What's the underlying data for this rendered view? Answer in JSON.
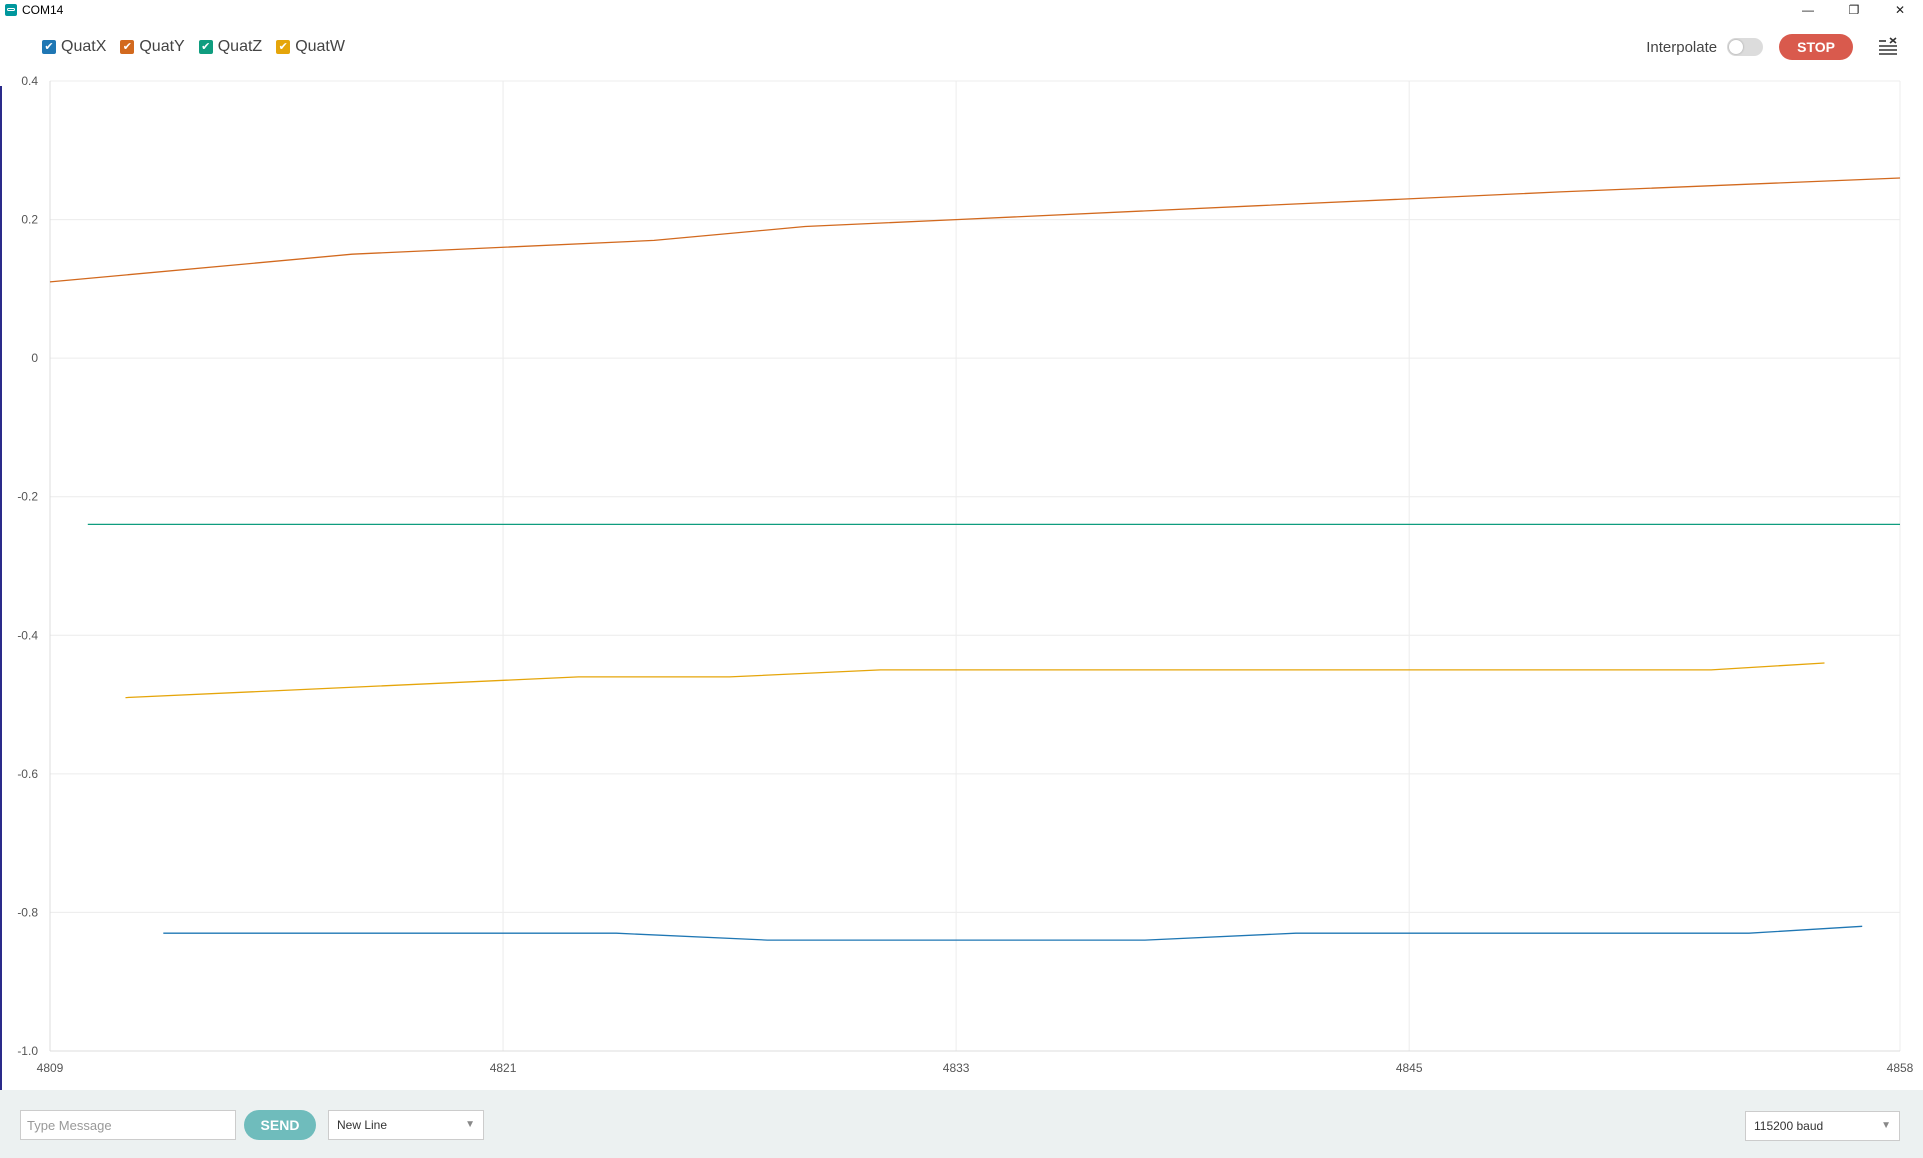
{
  "window": {
    "title": "COM14",
    "minimize_glyph": "—",
    "maximize_glyph": "❐",
    "close_glyph": "✕"
  },
  "legend": [
    {
      "label": "QuatX",
      "color": "#1f77b4",
      "checked": true
    },
    {
      "label": "QuatY",
      "color": "#d2691e",
      "checked": true
    },
    {
      "label": "QuatZ",
      "color": "#0f9d7f",
      "checked": true
    },
    {
      "label": "QuatW",
      "color": "#e5a50a",
      "checked": true
    }
  ],
  "toolbar": {
    "interpolate_label": "Interpolate",
    "interpolate_on": false,
    "stop_label": "STOP",
    "clear_icon": "clear-list-icon"
  },
  "chart_data": {
    "type": "line",
    "xlim": [
      4809,
      4858
    ],
    "ylim": [
      -1.0,
      0.4
    ],
    "xticks": [
      "4809",
      "4821",
      "4833",
      "4845",
      "4858"
    ],
    "xtick_values": [
      4809,
      4821,
      4833,
      4845,
      4858
    ],
    "yticks": [
      "0.4",
      "0.2",
      "0",
      "-0.2",
      "-0.4",
      "-0.6",
      "-0.8",
      "-1.0"
    ],
    "ytick_values": [
      0.4,
      0.2,
      0,
      -0.2,
      -0.4,
      -0.6,
      -0.8,
      -1.0
    ],
    "grid": true,
    "series": [
      {
        "name": "QuatX",
        "color": "#1f77b4",
        "x": [
          4812,
          4824,
          4828,
          4838,
          4842,
          4848,
          4854,
          4857
        ],
        "y": [
          -0.83,
          -0.83,
          -0.84,
          -0.84,
          -0.83,
          -0.83,
          -0.83,
          -0.82
        ]
      },
      {
        "name": "QuatY",
        "color": "#d2691e",
        "x": [
          4809,
          4817,
          4825,
          4829,
          4833,
          4841,
          4849,
          4858
        ],
        "y": [
          0.11,
          0.15,
          0.17,
          0.19,
          0.2,
          0.22,
          0.24,
          0.26
        ]
      },
      {
        "name": "QuatZ",
        "color": "#0f9d7f",
        "x": [
          4810,
          4858
        ],
        "y": [
          -0.24,
          -0.24
        ]
      },
      {
        "name": "QuatW",
        "color": "#e5a50a",
        "x": [
          4811,
          4823,
          4827,
          4831,
          4837,
          4843,
          4849,
          4853,
          4856
        ],
        "y": [
          -0.49,
          -0.46,
          -0.46,
          -0.45,
          -0.45,
          -0.45,
          -0.45,
          -0.45,
          -0.44
        ]
      }
    ]
  },
  "bottom": {
    "message_placeholder": "Type Message",
    "message_value": "",
    "send_label": "SEND",
    "line_ending": "New Line",
    "baud_rate": "115200 baud"
  }
}
